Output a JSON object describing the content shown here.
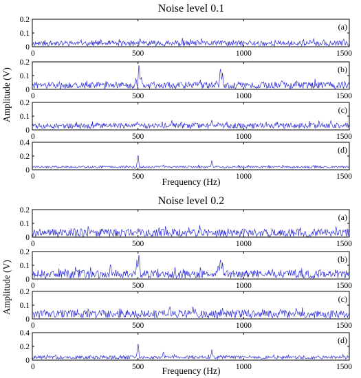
{
  "colors": {
    "line": "#2a2ad6",
    "axes": "#000000",
    "background": "#ffffff"
  },
  "charts": [
    {
      "title": "Noise level 0.1",
      "xlabel": "Frequency (Hz)",
      "ylabel": "Amplitude (V)"
    },
    {
      "title": "Noise level 0.2",
      "xlabel": "Frequency (Hz)",
      "ylabel": "Amplitude (V)"
    }
  ],
  "chart_data": [
    {
      "type": "line",
      "title": "Noise level 0.1",
      "xlabel": "Frequency (Hz)",
      "ylabel": "Amplitude (V)",
      "xlim": [
        0,
        1500
      ],
      "xticks": [
        0,
        500,
        1000,
        1500
      ],
      "grid": false,
      "panels": [
        {
          "label": "(a)",
          "ylim": [
            0,
            0.2
          ],
          "yticks": [
            "0",
            "0.1",
            "0.2"
          ],
          "base": 0.025,
          "noise": 0.02,
          "peaks": [
            [
              510,
              0.06
            ],
            [
              880,
              0.05
            ],
            [
              1030,
              0.05
            ]
          ]
        },
        {
          "label": "(b)",
          "ylim": [
            0,
            0.2
          ],
          "yticks": [
            "0",
            "0.1",
            "0.2"
          ],
          "base": 0.03,
          "noise": 0.025,
          "peaks": [
            [
              490,
              0.09
            ],
            [
              505,
              0.2
            ],
            [
              515,
              0.1
            ],
            [
              870,
              0.06
            ],
            [
              890,
              0.17
            ],
            [
              900,
              0.12
            ],
            [
              640,
              0.05
            ],
            [
              200,
              0.05
            ]
          ]
        },
        {
          "label": "(c)",
          "ylim": [
            0,
            0.2
          ],
          "yticks": [
            "0",
            "0.1",
            "0.2"
          ],
          "base": 0.03,
          "noise": 0.02,
          "peaks": [
            [
              660,
              0.07
            ],
            [
              770,
              0.06
            ],
            [
              850,
              0.08
            ],
            [
              880,
              0.06
            ]
          ]
        },
        {
          "label": "(d)",
          "ylim": [
            0,
            0.4
          ],
          "yticks": [
            "0",
            "0.2",
            "0.4"
          ],
          "base": 0.04,
          "noise": 0.015,
          "peaks": [
            [
              500,
              0.24
            ],
            [
              620,
              0.08
            ],
            [
              850,
              0.15
            ]
          ]
        }
      ]
    },
    {
      "type": "line",
      "title": "Noise level 0.2",
      "xlabel": "Frequency (Hz)",
      "ylabel": "Amplitude (V)",
      "xlim": [
        0,
        1500
      ],
      "xticks": [
        0,
        500,
        1000,
        1500
      ],
      "grid": false,
      "panels": [
        {
          "label": "(a)",
          "ylim": [
            0,
            0.2
          ],
          "yticks": [
            "0",
            "0.1",
            "0.2"
          ],
          "base": 0.03,
          "noise": 0.03,
          "peaks": [
            [
              500,
              0.07
            ],
            [
              520,
              0.06
            ],
            [
              760,
              0.06
            ]
          ]
        },
        {
          "label": "(b)",
          "ylim": [
            0,
            0.2
          ],
          "yticks": [
            "0",
            "0.1",
            "0.2"
          ],
          "base": 0.035,
          "noise": 0.03,
          "peaks": [
            [
              370,
              0.12
            ],
            [
              495,
              0.14
            ],
            [
              505,
              0.2
            ],
            [
              880,
              0.11
            ],
            [
              890,
              0.16
            ],
            [
              900,
              0.12
            ],
            [
              920,
              0.07
            ]
          ]
        },
        {
          "label": "(c)",
          "ylim": [
            0,
            0.2
          ],
          "yticks": [
            "0",
            "0.1",
            "0.2"
          ],
          "base": 0.035,
          "noise": 0.03,
          "peaks": [
            [
              650,
              0.1
            ],
            [
              760,
              0.1
            ],
            [
              770,
              0.08
            ],
            [
              900,
              0.08
            ]
          ]
        },
        {
          "label": "(d)",
          "ylim": [
            0,
            0.4
          ],
          "yticks": [
            "0",
            "0.2",
            "0.4"
          ],
          "base": 0.04,
          "noise": 0.025,
          "peaks": [
            [
              500,
              0.27
            ],
            [
              620,
              0.13
            ],
            [
              850,
              0.17
            ]
          ]
        }
      ]
    }
  ]
}
